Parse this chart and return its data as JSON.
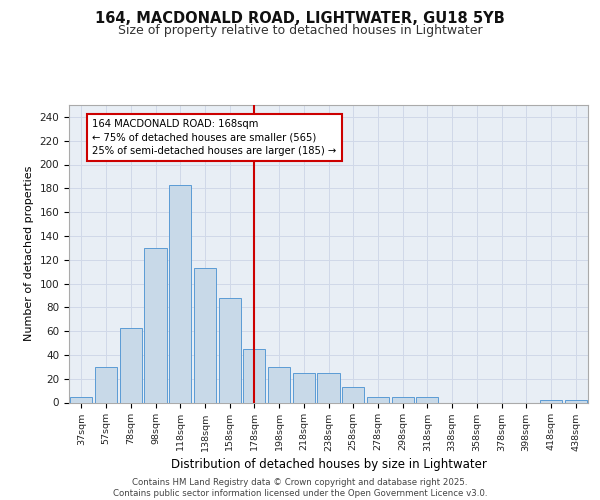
{
  "title1": "164, MACDONALD ROAD, LIGHTWATER, GU18 5YB",
  "title2": "Size of property relative to detached houses in Lightwater",
  "xlabel": "Distribution of detached houses by size in Lightwater",
  "ylabel": "Number of detached properties",
  "categories": [
    "37sqm",
    "57sqm",
    "78sqm",
    "98sqm",
    "118sqm",
    "138sqm",
    "158sqm",
    "178sqm",
    "198sqm",
    "218sqm",
    "238sqm",
    "258sqm",
    "278sqm",
    "298sqm",
    "318sqm",
    "338sqm",
    "358sqm",
    "378sqm",
    "398sqm",
    "418sqm",
    "438sqm"
  ],
  "values": [
    5,
    30,
    63,
    130,
    183,
    113,
    88,
    45,
    30,
    25,
    25,
    13,
    5,
    5,
    5,
    0,
    0,
    0,
    0,
    2,
    2
  ],
  "bar_color": "#c8d9e8",
  "bar_edge_color": "#5b9bd5",
  "vline_color": "#cc0000",
  "annotation_text": "164 MACDONALD ROAD: 168sqm\n← 75% of detached houses are smaller (565)\n25% of semi-detached houses are larger (185) →",
  "annotation_box_color": "#ffffff",
  "annotation_box_edge": "#cc0000",
  "grid_color": "#d0d8e8",
  "bg_color": "#e8eef5",
  "footer": "Contains HM Land Registry data © Crown copyright and database right 2025.\nContains public sector information licensed under the Open Government Licence v3.0.",
  "ylim": [
    0,
    250
  ],
  "yticks": [
    0,
    20,
    40,
    60,
    80,
    100,
    120,
    140,
    160,
    180,
    200,
    220,
    240
  ],
  "title1_fontsize": 10.5,
  "title2_fontsize": 9,
  "ylabel_fontsize": 8,
  "xlabel_fontsize": 8.5
}
